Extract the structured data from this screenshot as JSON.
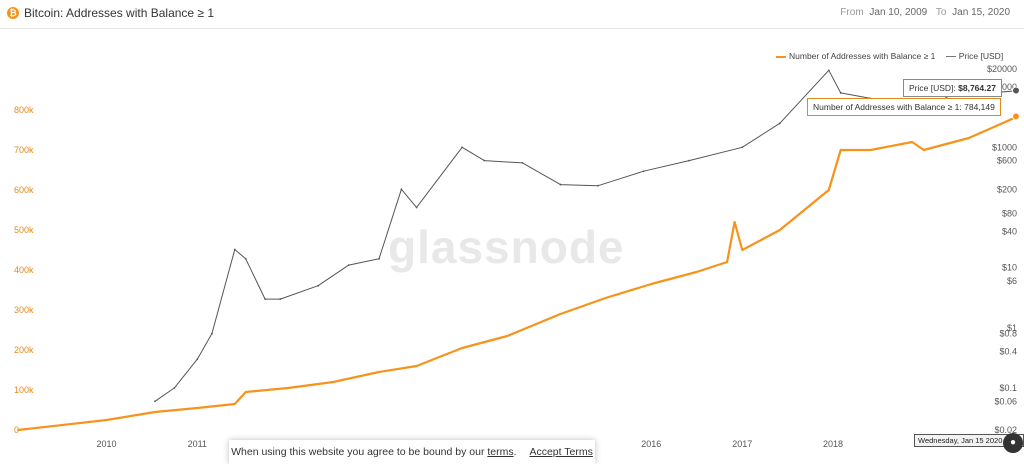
{
  "header": {
    "icon_letter": "₿",
    "title": "Bitcoin: Addresses with Balance ≥ 1",
    "from_label": "From",
    "from_value": "Jan 10, 2009",
    "to_label": "To",
    "to_value": "Jan 15, 2020"
  },
  "legend": {
    "series1": "Number of Addresses with Balance ≥ 1",
    "series2": "Price [USD]"
  },
  "tooltips": {
    "price_label": "Price [USD]: ",
    "price_value": "$8,764.27",
    "addr_label": "Number of Addresses with Balance ≥ 1: ",
    "addr_value": "784,149",
    "date": "Wednesday, Jan 15 2020 UTC"
  },
  "watermark": "glassnode",
  "cookie": {
    "text": "When using this website you agree to be bound by our ",
    "terms_link": "terms",
    "after": ".",
    "accept": "Accept Terms"
  },
  "colors": {
    "addresses": "#f7931a",
    "price": "#555555",
    "accent": "#f7931a"
  },
  "chart_data": {
    "type": "line",
    "x_tick_labels": [
      "2010",
      "2011",
      "2016",
      "2017",
      "2018"
    ],
    "left_axis": {
      "tick_labels": [
        "0",
        "100k",
        "200k",
        "300k",
        "400k",
        "500k",
        "600k",
        "700k",
        "800k"
      ],
      "ylim": [
        0,
        860000
      ]
    },
    "right_axis": {
      "scale": "log",
      "tick_labels": [
        "$20000",
        "$10000",
        "$1000",
        "$600",
        "$200",
        "$80",
        "$40",
        "$10",
        "$6",
        "$1",
        "$0.8",
        "$0.4",
        "$0.1",
        "$0.06",
        "$0.02"
      ]
    },
    "series": [
      {
        "name": "Number of Addresses with Balance ≥ 1",
        "axis": "left",
        "color": "#f7931a",
        "points": [
          [
            "2009-01-10",
            0
          ],
          [
            "2009-07-01",
            12000
          ],
          [
            "2010-01-01",
            25000
          ],
          [
            "2010-07-15",
            45000
          ],
          [
            "2011-01-01",
            55000
          ],
          [
            "2011-06-01",
            65000
          ],
          [
            "2011-07-15",
            95000
          ],
          [
            "2012-01-01",
            105000
          ],
          [
            "2012-07-01",
            120000
          ],
          [
            "2013-01-01",
            145000
          ],
          [
            "2013-06-01",
            160000
          ],
          [
            "2013-12-01",
            205000
          ],
          [
            "2014-06-01",
            235000
          ],
          [
            "2015-01-01",
            290000
          ],
          [
            "2015-07-01",
            330000
          ],
          [
            "2016-01-01",
            365000
          ],
          [
            "2016-07-01",
            395000
          ],
          [
            "2016-11-01",
            420000
          ],
          [
            "2016-12-01",
            520000
          ],
          [
            "2017-01-01",
            450000
          ],
          [
            "2017-06-01",
            500000
          ],
          [
            "2017-12-15",
            600000
          ],
          [
            "2018-02-01",
            700000
          ],
          [
            "2018-06-01",
            700000
          ],
          [
            "2018-11-15",
            720000
          ],
          [
            "2019-01-01",
            700000
          ],
          [
            "2019-07-01",
            730000
          ],
          [
            "2019-10-01",
            755000
          ],
          [
            "2020-01-15",
            784149
          ]
        ]
      },
      {
        "name": "Price [USD]",
        "axis": "right",
        "color": "#555555",
        "points": [
          [
            "2010-07-15",
            0.06
          ],
          [
            "2010-10-01",
            0.1
          ],
          [
            "2011-01-01",
            0.3
          ],
          [
            "2011-03-01",
            0.8
          ],
          [
            "2011-06-01",
            20
          ],
          [
            "2011-07-15",
            14
          ],
          [
            "2011-10-01",
            3
          ],
          [
            "2011-12-01",
            3
          ],
          [
            "2012-05-01",
            5
          ],
          [
            "2012-09-01",
            11
          ],
          [
            "2013-01-01",
            14
          ],
          [
            "2013-04-01",
            200
          ],
          [
            "2013-06-01",
            100
          ],
          [
            "2013-12-01",
            1000
          ],
          [
            "2014-03-01",
            600
          ],
          [
            "2014-08-01",
            550
          ],
          [
            "2015-01-01",
            240
          ],
          [
            "2015-06-01",
            230
          ],
          [
            "2015-12-01",
            400
          ],
          [
            "2016-06-01",
            600
          ],
          [
            "2017-01-01",
            1000
          ],
          [
            "2017-06-01",
            2500
          ],
          [
            "2017-12-15",
            19000
          ],
          [
            "2018-02-01",
            8000
          ],
          [
            "2018-06-01",
            6500
          ],
          [
            "2018-11-15",
            4000
          ],
          [
            "2019-01-01",
            3700
          ],
          [
            "2019-06-15",
            11000
          ],
          [
            "2019-10-01",
            8000
          ],
          [
            "2020-01-15",
            8764.27
          ]
        ]
      }
    ],
    "grid": false,
    "legend_position": "top-right"
  }
}
